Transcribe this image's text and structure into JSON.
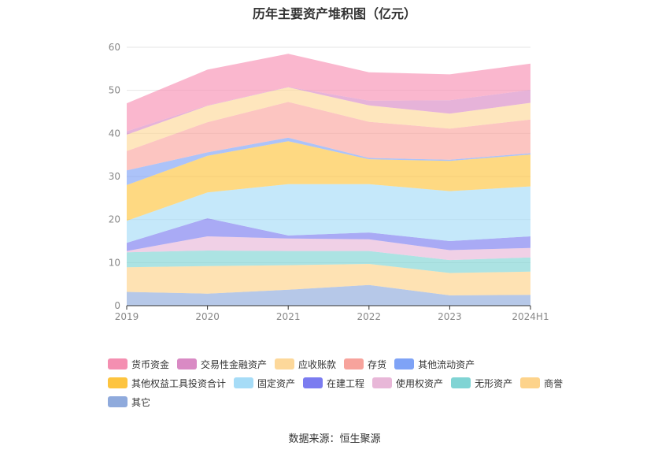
{
  "chart_data": {
    "type": "area",
    "stacked": true,
    "title": "历年主要资产堆积图（亿元）",
    "categories": [
      "2019",
      "2020",
      "2021",
      "2022",
      "2023",
      "2024H1"
    ],
    "ylim": [
      0,
      60
    ],
    "yticks": [
      0,
      10,
      20,
      30,
      40,
      50,
      60
    ],
    "grid": true,
    "legend_position": "bottom-left",
    "series": [
      {
        "name": "其它",
        "color": "#8faadc",
        "values": [
          3.2,
          2.8,
          3.7,
          4.8,
          2.4,
          2.5
        ]
      },
      {
        "name": "商誉",
        "color": "#fdd38b",
        "values": [
          5.7,
          6.4,
          5.7,
          4.9,
          5.2,
          5.4
        ]
      },
      {
        "name": "无形资产",
        "color": "#80d4d4",
        "values": [
          3.5,
          3.6,
          3.3,
          3.0,
          3.0,
          3.3
        ]
      },
      {
        "name": "使用权资产",
        "color": "#e8b7d8",
        "values": [
          0.3,
          3.3,
          2.9,
          2.7,
          2.3,
          2.2
        ]
      },
      {
        "name": "在建工程",
        "color": "#7b7cf0",
        "values": [
          1.9,
          4.2,
          0.7,
          1.6,
          2.1,
          2.7
        ]
      },
      {
        "name": "固定资产",
        "color": "#a6dcf7",
        "values": [
          5.1,
          6.0,
          11.9,
          11.2,
          11.6,
          11.6
        ]
      },
      {
        "name": "其他权益工具投资合计",
        "color": "#fdc43f",
        "values": [
          8.3,
          8.5,
          10.0,
          5.8,
          7.0,
          7.4
        ]
      },
      {
        "name": "其他流动资产",
        "color": "#7fa3f6",
        "values": [
          3.4,
          0.8,
          0.8,
          0.3,
          0.3,
          0.3
        ]
      },
      {
        "name": "存货",
        "color": "#fba6a0",
        "values": [
          4.5,
          7.0,
          8.3,
          8.4,
          7.2,
          7.8
        ]
      },
      {
        "name": "应收账款",
        "color": "#fdd89a",
        "values": [
          3.8,
          3.8,
          3.4,
          3.8,
          3.5,
          3.9
        ]
      },
      {
        "name": "交易性金融资产",
        "color": "#d98ac4",
        "values": [
          0.8,
          0.1,
          0.1,
          1.1,
          3.1,
          3.0
        ]
      },
      {
        "name": "货币资金",
        "color": "#f890b4",
        "values": [
          6.5,
          8.3,
          7.7,
          6.6,
          6.0,
          6.1
        ]
      }
    ],
    "legend_rows": [
      [
        {
          "name": "货币资金",
          "color": "#f48fb1"
        },
        {
          "name": "交易性金融资产",
          "color": "#d98ac4"
        },
        {
          "name": "应收账款",
          "color": "#fdd89a"
        },
        {
          "name": "存货",
          "color": "#f7a39c"
        },
        {
          "name": "其他流动资产",
          "color": "#7fa3f6"
        }
      ],
      [
        {
          "name": "其他权益工具投资合计",
          "color": "#fdc43f"
        },
        {
          "name": "固定资产",
          "color": "#a6dcf7"
        },
        {
          "name": "在建工程",
          "color": "#7b7cf0"
        },
        {
          "name": "使用权资产",
          "color": "#e8b7d8"
        },
        {
          "name": "无形资产",
          "color": "#80d4d4"
        },
        {
          "name": "商誉",
          "color": "#fdd38b"
        }
      ],
      [
        {
          "name": "其它",
          "color": "#8faadc"
        }
      ]
    ],
    "source": "数据来源：恒生聚源"
  }
}
